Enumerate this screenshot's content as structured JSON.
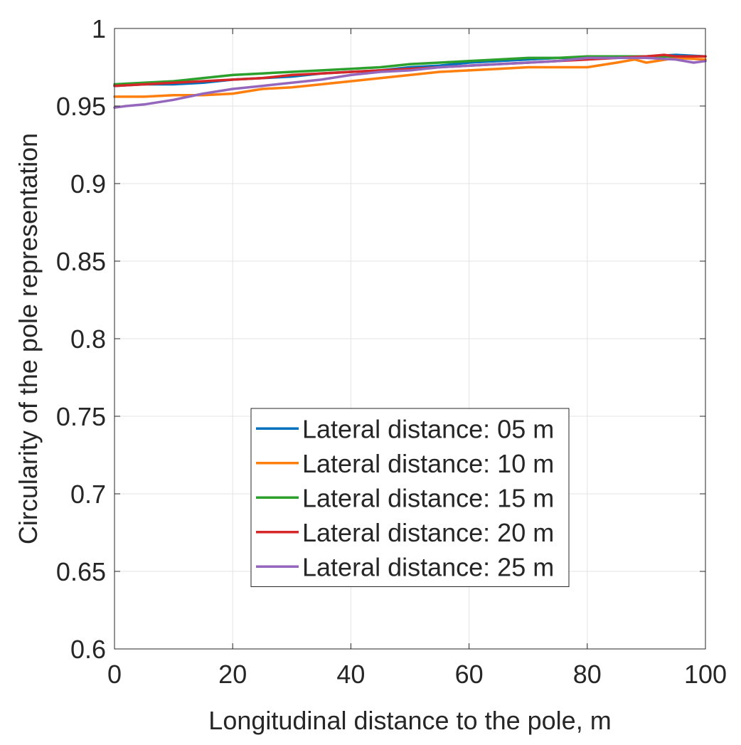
{
  "chart_data": {
    "type": "line",
    "title": "",
    "xlabel": "Longitudinal distance to the pole, m",
    "ylabel": "Circularity of the pole representation",
    "xlim": [
      0,
      100
    ],
    "ylim": [
      0.6,
      1
    ],
    "xticks": [
      0,
      20,
      40,
      60,
      80,
      100
    ],
    "xtick_labels": [
      "0",
      "20",
      "40",
      "60",
      "80",
      "100"
    ],
    "yticks": [
      0.6,
      0.65,
      0.7,
      0.75,
      0.8,
      0.85,
      0.9,
      0.95,
      1
    ],
    "ytick_labels": [
      "0.6",
      "0.65",
      "0.7",
      "0.75",
      "0.8",
      "0.85",
      "0.9",
      "0.95",
      "1"
    ],
    "grid": true,
    "legend_position": "lower-center",
    "series": [
      {
        "name": "Lateral distance: 05 m",
        "color": "#0072BD",
        "x": [
          0,
          5,
          10,
          15,
          20,
          25,
          30,
          35,
          40,
          45,
          50,
          55,
          60,
          65,
          70,
          75,
          80,
          85,
          90,
          95,
          100
        ],
        "y": [
          0.963,
          0.964,
          0.964,
          0.965,
          0.967,
          0.968,
          0.969,
          0.971,
          0.972,
          0.973,
          0.975,
          0.976,
          0.978,
          0.979,
          0.98,
          0.981,
          0.981,
          0.982,
          0.982,
          0.983,
          0.982
        ]
      },
      {
        "name": "Lateral distance: 10 m",
        "color": "#FF7F0E",
        "x": [
          0,
          5,
          10,
          15,
          20,
          25,
          30,
          35,
          40,
          45,
          50,
          55,
          60,
          65,
          70,
          75,
          80,
          85,
          88,
          90,
          95,
          100
        ],
        "y": [
          0.956,
          0.956,
          0.957,
          0.957,
          0.958,
          0.961,
          0.962,
          0.964,
          0.966,
          0.968,
          0.97,
          0.972,
          0.973,
          0.974,
          0.975,
          0.975,
          0.975,
          0.978,
          0.98,
          0.978,
          0.981,
          0.98
        ]
      },
      {
        "name": "Lateral distance: 15 m",
        "color": "#2CA02C",
        "x": [
          0,
          5,
          10,
          15,
          20,
          25,
          30,
          35,
          40,
          45,
          50,
          55,
          60,
          65,
          70,
          75,
          80,
          85,
          90,
          95,
          100
        ],
        "y": [
          0.964,
          0.965,
          0.966,
          0.968,
          0.97,
          0.971,
          0.972,
          0.973,
          0.974,
          0.975,
          0.977,
          0.978,
          0.979,
          0.98,
          0.981,
          0.981,
          0.982,
          0.982,
          0.982,
          0.982,
          0.982
        ]
      },
      {
        "name": "Lateral distance: 20 m",
        "color": "#D62728",
        "x": [
          0,
          5,
          10,
          15,
          20,
          25,
          30,
          35,
          40,
          45,
          50,
          55,
          60,
          65,
          70,
          75,
          80,
          85,
          90,
          93,
          95,
          100
        ],
        "y": [
          0.963,
          0.964,
          0.965,
          0.966,
          0.967,
          0.968,
          0.97,
          0.971,
          0.972,
          0.973,
          0.974,
          0.975,
          0.976,
          0.977,
          0.978,
          0.979,
          0.98,
          0.981,
          0.982,
          0.983,
          0.982,
          0.982
        ]
      },
      {
        "name": "Lateral distance: 25 m",
        "color": "#9467BD",
        "x": [
          0,
          2,
          5,
          10,
          15,
          20,
          25,
          30,
          35,
          40,
          45,
          50,
          55,
          60,
          65,
          70,
          75,
          80,
          85,
          90,
          95,
          98,
          100
        ],
        "y": [
          0.949,
          0.95,
          0.951,
          0.954,
          0.958,
          0.961,
          0.963,
          0.965,
          0.967,
          0.97,
          0.972,
          0.973,
          0.975,
          0.976,
          0.977,
          0.978,
          0.979,
          0.981,
          0.981,
          0.981,
          0.98,
          0.978,
          0.979
        ]
      }
    ]
  }
}
